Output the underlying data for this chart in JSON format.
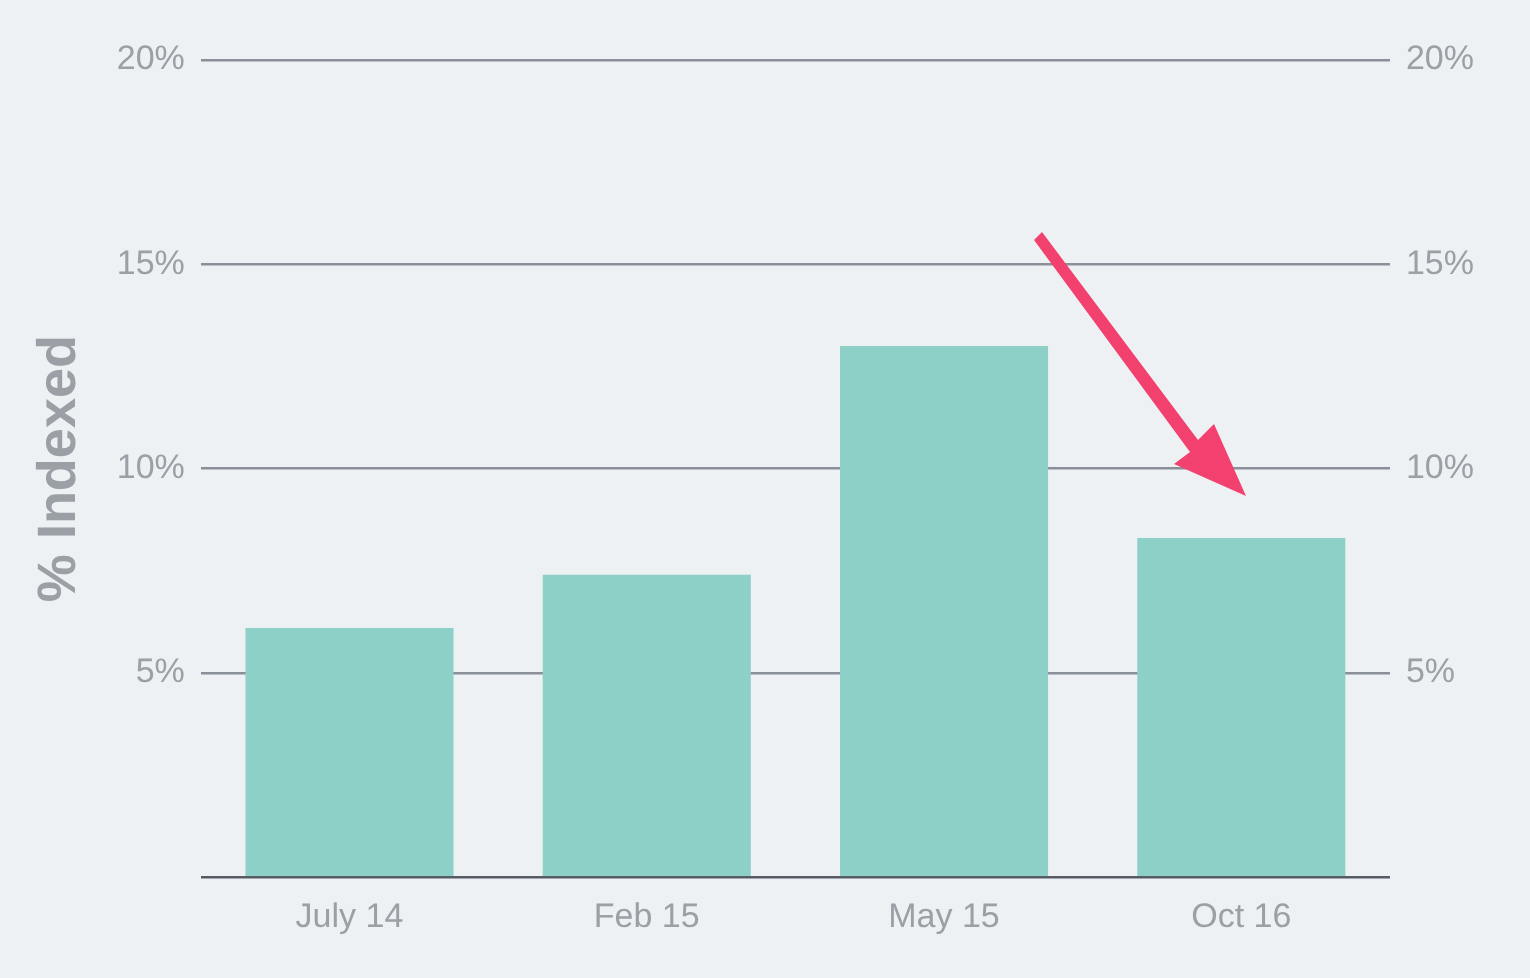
{
  "chart_data": {
    "type": "bar",
    "ylabel": "% Indexed",
    "categories": [
      "July 14",
      "Feb 15",
      "May 15",
      "Oct 16"
    ],
    "values": [
      6.1,
      7.4,
      13.0,
      8.3
    ],
    "color": "#8dd0c8",
    "ylim": [
      0,
      20
    ],
    "yticks": [
      {
        "value": 0,
        "label": null
      },
      {
        "value": 5,
        "label": "5%"
      },
      {
        "value": 10,
        "label": "10%"
      },
      {
        "value": 15,
        "label": "15%"
      },
      {
        "value": 20,
        "label": "20%"
      }
    ],
    "y2lim": [
      0,
      20
    ],
    "y2ticks": [
      {
        "value": 0,
        "label": null
      },
      {
        "value": 5,
        "label": "5%"
      },
      {
        "value": 10,
        "label": "10%"
      },
      {
        "value": 15,
        "label": "15%"
      },
      {
        "value": 20,
        "label": "20%"
      }
    ],
    "grid": "y",
    "legend": false
  }
}
